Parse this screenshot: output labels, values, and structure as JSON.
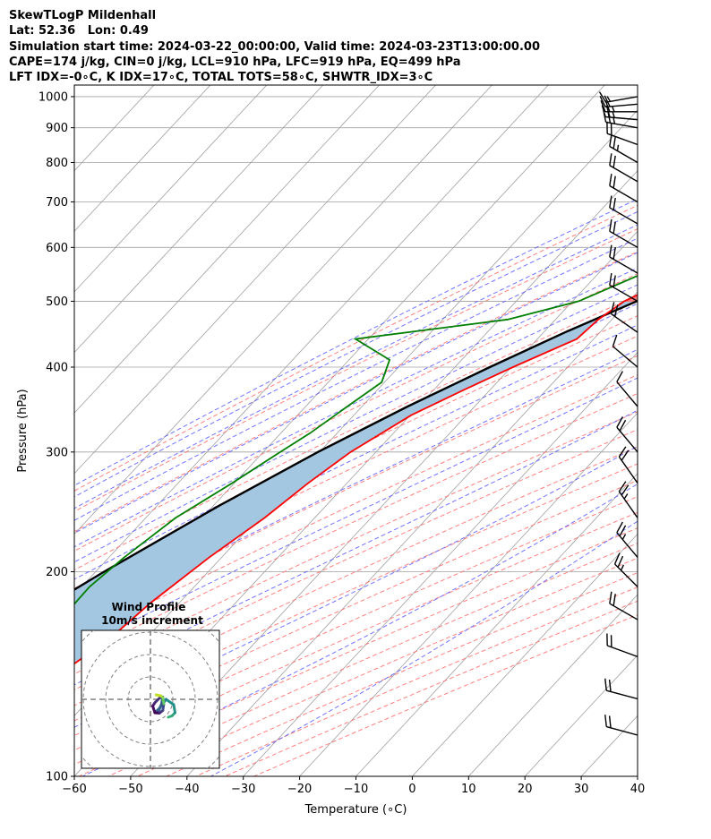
{
  "header": {
    "line1": "SkewTLogP Mildenhall",
    "line2": "Lat: 52.36   Lon: 0.49",
    "line3": "Simulation start time: 2024-03-22_00:00:00, Valid time: 2024-03-23T13:00:00.00",
    "line4": "CAPE=174 j/kg, CIN=0 j/kg, LCL=910 hPa, LFC=919 hPa, EQ=499 hPa",
    "line5": "LFT IDX=-0∘C, K IDX=17∘C, TOTAL TOTS=58∘C, SHWTR_IDX=3∘C"
  },
  "chart_data": {
    "type": "line",
    "subtype": "skew-t log-p",
    "xlabel": "Temperature (∘C)",
    "ylabel": "Pressure (hPa)",
    "xlim": [
      -60,
      40
    ],
    "ylim": [
      1040,
      100
    ],
    "y_scale": "log",
    "grid": true,
    "x_ticks": [
      "−60",
      "−50",
      "−40",
      "−30",
      "−20",
      "−10",
      "0",
      "10",
      "20",
      "30",
      "40"
    ],
    "y_ticks": [
      "100",
      "200",
      "300",
      "400",
      "500",
      "600",
      "700",
      "800",
      "900",
      "1000"
    ],
    "colors": {
      "temperature": "#ff0000",
      "dewpoint": "#008000",
      "parcel": "#000000",
      "cape_fill": "#a4c7e1",
      "cin_fill": "#f27878",
      "dry_adiabat": "#ff6b6b",
      "moist_adiabat": "#5a5aff",
      "mixing_ratio": "#9933cc",
      "isotherm": "#a0a0a0",
      "barbs": "#000000"
    },
    "series": [
      {
        "role": "temperature",
        "p": [
          1000,
          950,
          925,
          900,
          850,
          800,
          750,
          700,
          650,
          600,
          550,
          500,
          470,
          440,
          400,
          370,
          340,
          300,
          270,
          240,
          210,
          180,
          160,
          140,
          120,
          100
        ],
        "t": [
          8.8,
          4.3,
          2.3,
          -0.2,
          -5.2,
          -10.2,
          -14.9,
          -19.7,
          -24.8,
          -29.8,
          -35.1,
          -40.8,
          -42.4,
          -43.0,
          -49.7,
          -54.7,
          -59.8,
          -64.5,
          -66.9,
          -68.9,
          -72.2,
          -75.1,
          -76.4,
          -79.7,
          -82.9,
          -87.6
        ]
      },
      {
        "role": "dewpoint",
        "p": [
          1000,
          950,
          925,
          900,
          860,
          830,
          800,
          750,
          700,
          650,
          600,
          550,
          500,
          470,
          440,
          410,
          380,
          350,
          320,
          300,
          270,
          240,
          210,
          190,
          160,
          130,
          100
        ],
        "t": [
          2.6,
          2.2,
          0.9,
          -3.0,
          -8.6,
          -15.3,
          -19.0,
          -24.3,
          -29.6,
          -33.4,
          -37.2,
          -42.0,
          -48.9,
          -58.5,
          -82.3,
          -72.8,
          -70.5,
          -72.6,
          -74.8,
          -77.0,
          -80.4,
          -84.7,
          -87.3,
          -88.6,
          -88.2,
          -85.8,
          -84.0
        ]
      },
      {
        "role": "parcel",
        "p": [
          1000,
          950,
          919,
          900,
          850,
          800,
          750,
          700,
          650,
          600,
          550,
          500,
          450,
          400,
          350,
          300,
          250,
          200,
          150,
          100
        ],
        "t": [
          8.8,
          4.3,
          1.6,
          0.6,
          -2.5,
          -6.0,
          -9.8,
          -14.1,
          -19.0,
          -24.6,
          -31.1,
          -38.6,
          -46.2,
          -53.8,
          -61.9,
          -70.3,
          -79.0,
          -88.5,
          -99.5,
          -113.0
        ]
      }
    ],
    "wind_barbs": [
      {
        "p": 1000,
        "speed_kt": 15,
        "dir_deg": 260
      },
      {
        "p": 975,
        "speed_kt": 20,
        "dir_deg": 265
      },
      {
        "p": 950,
        "speed_kt": 25,
        "dir_deg": 270
      },
      {
        "p": 925,
        "speed_kt": 25,
        "dir_deg": 275
      },
      {
        "p": 900,
        "speed_kt": 25,
        "dir_deg": 280
      },
      {
        "p": 850,
        "speed_kt": 20,
        "dir_deg": 290
      },
      {
        "p": 800,
        "speed_kt": 25,
        "dir_deg": 300
      },
      {
        "p": 750,
        "speed_kt": 20,
        "dir_deg": 300
      },
      {
        "p": 700,
        "speed_kt": 20,
        "dir_deg": 300
      },
      {
        "p": 650,
        "speed_kt": 20,
        "dir_deg": 300
      },
      {
        "p": 600,
        "speed_kt": 20,
        "dir_deg": 300
      },
      {
        "p": 550,
        "speed_kt": 20,
        "dir_deg": 300
      },
      {
        "p": 500,
        "speed_kt": 20,
        "dir_deg": 300
      },
      {
        "p": 450,
        "speed_kt": 20,
        "dir_deg": 305
      },
      {
        "p": 400,
        "speed_kt": 10,
        "dir_deg": 310
      },
      {
        "p": 350,
        "speed_kt": 10,
        "dir_deg": 320
      },
      {
        "p": 300,
        "speed_kt": 20,
        "dir_deg": 320
      },
      {
        "p": 270,
        "speed_kt": 20,
        "dir_deg": 325
      },
      {
        "p": 240,
        "speed_kt": 25,
        "dir_deg": 325
      },
      {
        "p": 210,
        "speed_kt": 25,
        "dir_deg": 320
      },
      {
        "p": 190,
        "speed_kt": 25,
        "dir_deg": 315
      },
      {
        "p": 170,
        "speed_kt": 20,
        "dir_deg": 300
      },
      {
        "p": 150,
        "speed_kt": 20,
        "dir_deg": 290
      },
      {
        "p": 130,
        "speed_kt": 20,
        "dir_deg": 285
      },
      {
        "p": 115,
        "speed_kt": 20,
        "dir_deg": 285
      }
    ],
    "hodograph": {
      "title_line1": "Wind Profile",
      "title_line2": "10m/s increment",
      "ring_step_ms": 10,
      "u_ms": [
        8.0,
        9.6,
        11.0,
        10.4,
        7.0,
        4.0,
        2.0,
        3.5,
        5.0,
        5.5,
        4.0,
        2.0,
        1.0,
        2.0,
        4.0,
        5.5,
        6.0,
        5.5,
        4.5,
        2.5
      ],
      "v_ms": [
        -8.0,
        -7.4,
        -6.0,
        -2.4,
        0.0,
        -4.0,
        -6.0,
        -5.6,
        -2.0,
        1.0,
        0.5,
        -1.5,
        -3.0,
        -6.0,
        -6.2,
        -5.0,
        -2.0,
        0.8,
        1.6,
        2.0
      ]
    }
  }
}
